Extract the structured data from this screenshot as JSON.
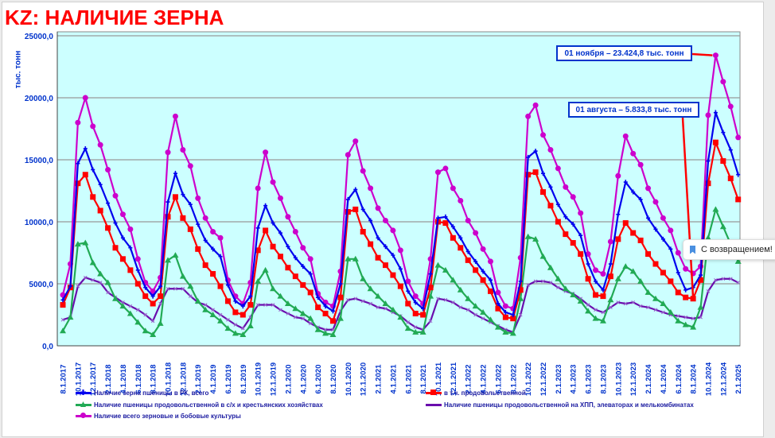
{
  "title": "KZ: НАЛИЧИЕ ЗЕРНА",
  "toast": {
    "text": "С возвращением!",
    "icon": "bookmark-icon"
  },
  "chart_data": {
    "type": "line",
    "title": "KZ: НАЛИЧИЕ ЗЕРНА",
    "ylabel": "тыс. тонн",
    "xlabel": "",
    "ylim": [
      0,
      25000
    ],
    "yticks": [
      "0,0",
      "5000,0",
      "10000,0",
      "15000,0",
      "20000,0",
      "25000,0"
    ],
    "ytick_values": [
      0,
      5000,
      10000,
      15000,
      20000,
      25000
    ],
    "grid": true,
    "legend": "bottom",
    "x_start": "8.1.2017",
    "x_end": "2.1.2025",
    "xtick_labels": [
      "8.1.2017",
      "10.1.2017",
      "12.1.2017",
      "2.1.2018",
      "4.1.2018",
      "6.1.2018",
      "8.1.2018",
      "10.1.2018",
      "12.1.2018",
      "2.1.2019",
      "4.1.2019",
      "6.1.2019",
      "8.1.2019",
      "10.1.2019",
      "12.1.2019",
      "2.1.2020",
      "4.1.2020",
      "6.1.2020",
      "8.1.2020",
      "10.1.2020",
      "12.1.2020",
      "2.1.2021",
      "4.1.2021",
      "6.1.2021",
      "8.1.2021",
      "10.1.2021",
      "12.1.2021",
      "2.1.2022",
      "4.1.2022",
      "6.1.2022",
      "8.1.2022",
      "10.1.2022",
      "12.1.2022",
      "2.1.2023",
      "4.1.2023",
      "6.1.2023",
      "8.1.2023",
      "10.1.2023",
      "12.1.2023",
      "2.1.2024",
      "4.1.2024",
      "6.1.2024",
      "8.1.2024",
      "10.1.2024",
      "12.1.2024",
      "2.1.2025"
    ],
    "series": [
      {
        "name": "Наличие всего зерновые и бобовые культуры",
        "color": "#cc00cc",
        "marker": "circle",
        "values": [
          4100,
          6600,
          18000,
          20000,
          17700,
          16200,
          14200,
          12100,
          10600,
          9400,
          7000,
          5100,
          4400,
          5500,
          15600,
          18500,
          15800,
          14500,
          11900,
          10300,
          9200,
          8700,
          5300,
          4000,
          3400,
          5100,
          12700,
          15600,
          13200,
          11900,
          10400,
          9200,
          7900,
          7000,
          4200,
          3500,
          3200,
          6000,
          15400,
          16500,
          14100,
          12700,
          11100,
          10100,
          9300,
          7700,
          5200,
          4000,
          3400,
          7000,
          14000,
          14300,
          12700,
          11700,
          10100,
          9100,
          7800,
          6800,
          4300,
          3200,
          3000,
          7100,
          18500,
          19400,
          17000,
          15800,
          14300,
          12800,
          12000,
          10700,
          7400,
          6100,
          5800,
          8400,
          13700,
          16900,
          15500,
          14600,
          12700,
          11600,
          10300,
          9300,
          7500,
          6200,
          5833.8,
          6400,
          18600,
          23424.8,
          21300,
          19300,
          16800
        ]
      },
      {
        "name": "Наличие зерна пшеницы в РК, всего",
        "color": "#0000ee",
        "marker": "plus",
        "values": [
          3700,
          4800,
          14700,
          15900,
          14200,
          13000,
          11500,
          9900,
          8700,
          7900,
          6100,
          4700,
          4000,
          4800,
          11600,
          13900,
          12200,
          11400,
          9800,
          8500,
          7800,
          7200,
          4900,
          3600,
          3200,
          4000,
          9500,
          11300,
          9900,
          9100,
          8000,
          7100,
          6400,
          5800,
          3900,
          3200,
          2800,
          5000,
          11800,
          12600,
          11000,
          10100,
          8700,
          8000,
          7300,
          6200,
          4400,
          3500,
          3000,
          5800,
          10300,
          10400,
          9600,
          8700,
          7600,
          6800,
          6000,
          5300,
          3400,
          2700,
          2500,
          5200,
          15200,
          15700,
          13900,
          12800,
          11400,
          10400,
          9800,
          8900,
          6600,
          5200,
          4500,
          6600,
          10600,
          13200,
          12400,
          11800,
          10300,
          9400,
          8600,
          7800,
          5900,
          4500,
          4700,
          5700,
          14900,
          18800,
          17200,
          15800,
          13800
        ]
      },
      {
        "name": "в т.ч. продовольственной",
        "color": "#ff0000",
        "marker": "square",
        "values": [
          3300,
          4700,
          13100,
          13800,
          12000,
          10900,
          9500,
          7900,
          7000,
          6100,
          5000,
          4000,
          3400,
          4000,
          10400,
          12000,
          10300,
          9400,
          7800,
          6500,
          5800,
          4800,
          3600,
          2700,
          2500,
          3300,
          7700,
          9300,
          8000,
          7200,
          6300,
          5600,
          4900,
          4300,
          3100,
          2600,
          2000,
          3900,
          10800,
          11000,
          9200,
          8200,
          7100,
          6500,
          5700,
          4800,
          3400,
          2600,
          2500,
          4700,
          10000,
          9900,
          8700,
          7900,
          6900,
          6100,
          5300,
          4400,
          3000,
          2300,
          2200,
          4500,
          13800,
          14000,
          12400,
          11300,
          10000,
          9000,
          8300,
          7400,
          5400,
          4100,
          4000,
          5600,
          8600,
          9900,
          9100,
          8500,
          7400,
          6600,
          5900,
          5200,
          4300,
          3900,
          3800,
          5300,
          13100,
          16400,
          14900,
          13500,
          11800
        ]
      },
      {
        "name": "Наличие пшеницы продовольственной в с/х и крестьянских хозяйствах",
        "color": "#22aa55",
        "marker": "triangle",
        "values": [
          1200,
          2300,
          8200,
          8300,
          6700,
          5800,
          5100,
          3800,
          3200,
          2600,
          1900,
          1200,
          900,
          1800,
          6900,
          7300,
          5600,
          4800,
          3600,
          2900,
          2500,
          2000,
          1400,
          1000,
          900,
          1600,
          5200,
          6100,
          4600,
          4000,
          3400,
          3000,
          2600,
          2200,
          1300,
          1000,
          900,
          2200,
          7000,
          7000,
          5400,
          4600,
          4000,
          3400,
          2900,
          2300,
          1400,
          1100,
          1100,
          4000,
          6500,
          6100,
          5300,
          4500,
          3800,
          3200,
          2700,
          2100,
          1500,
          1100,
          1000,
          3800,
          8800,
          8600,
          7200,
          6300,
          5400,
          4600,
          4100,
          3600,
          2800,
          2200,
          2000,
          3700,
          5400,
          6400,
          6000,
          5200,
          4300,
          3800,
          3400,
          2700,
          2000,
          1700,
          1500,
          3100,
          8700,
          11000,
          9600,
          8200,
          6800
        ]
      },
      {
        "name": "Наличие пшеницы продовольственной на ХПП, элеваторах и мелькомбинатах",
        "color": "#6a0dad",
        "marker": "x",
        "values": [
          2100,
          2300,
          4800,
          5500,
          5300,
          5100,
          4300,
          3900,
          3500,
          3200,
          2900,
          2500,
          2000,
          3400,
          4600,
          4600,
          4600,
          4000,
          3500,
          3300,
          2900,
          2500,
          2100,
          1700,
          1400,
          2300,
          3300,
          3300,
          3300,
          2900,
          2600,
          2300,
          2200,
          1800,
          1500,
          1300,
          1300,
          2800,
          3700,
          3800,
          3600,
          3400,
          3100,
          3000,
          2700,
          2400,
          1900,
          1500,
          1300,
          2000,
          3800,
          3700,
          3500,
          3100,
          2900,
          2500,
          2200,
          1900,
          1600,
          1300,
          1100,
          2500,
          4900,
          5200,
          5200,
          5100,
          4700,
          4400,
          4200,
          3800,
          3300,
          2900,
          2700,
          3100,
          3500,
          3400,
          3500,
          3200,
          3100,
          2900,
          2700,
          2500,
          2400,
          2300,
          2200,
          2300,
          4400,
          5300,
          5400,
          5400,
          5100
        ]
      }
    ],
    "annotations": [
      {
        "text": "01 ноября – 23.424,8 тыс. тонн",
        "x": "11.1.2024",
        "y": 23424.8
      },
      {
        "text": "01 августа – 5.833,8 тыс. тонн",
        "x": "8.1.2024",
        "y": 5833.8
      }
    ],
    "legend_items": [
      "Наличие зерна пшеницы в РК, всего",
      "в т.ч. продовольственной",
      "Наличие пшеницы продовольственной в с/х и крестьянских хозяйствах",
      "Наличие пшеницы продовольственной на ХПП, элеваторах и мелькомбинатах",
      "Наличие всего зерновые и бобовые культуры"
    ]
  }
}
